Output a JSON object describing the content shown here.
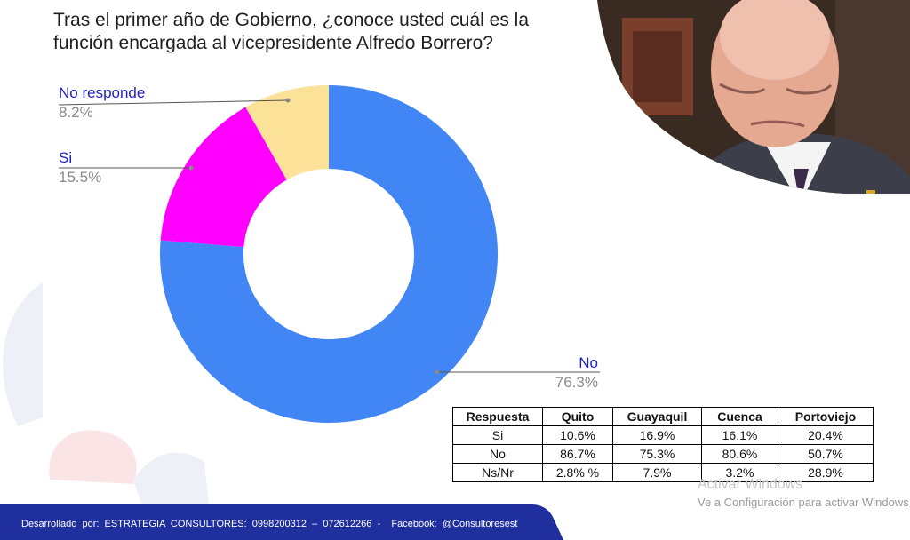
{
  "question": {
    "line1": "Tras el primer año de Gobierno, ¿conoce usted cuál es la",
    "line2": "función encargada al vicepresidente Alfredo Borrero?"
  },
  "chart_data": {
    "type": "pie",
    "variant": "donut",
    "title": "Tras el primer año de Gobierno, ¿conoce usted cuál es la función encargada al vicepresidente Alfredo Borrero?",
    "slices": [
      {
        "label": "No",
        "value": 76.3,
        "value_label": "76.3%",
        "color": "#4285f4"
      },
      {
        "label": "Si",
        "value": 15.5,
        "value_label": "15.5%",
        "color": "#ff00ff"
      },
      {
        "label": "No responde",
        "value": 8.2,
        "value_label": "8.2%",
        "color": "#fce199"
      }
    ]
  },
  "table": {
    "headers": [
      "Respuesta",
      "Quito",
      "Guayaquil",
      "Cuenca",
      "Portoviejo"
    ],
    "rows": [
      [
        "Si",
        "10.6%",
        "16.9%",
        "16.1%",
        "20.4%"
      ],
      [
        "No",
        "86.7%",
        "75.3%",
        "80.6%",
        "50.7%"
      ],
      [
        "Ns/Nr",
        "2.8% %",
        "7.9%",
        "3.2%",
        "28.9%"
      ]
    ]
  },
  "watermark": {
    "line1": "Activar Windows",
    "line2": "Ve a Configuración para activar Windows"
  },
  "footer": {
    "text": "Desarrollado  por:  ESTRATEGIA  CONSULTORES:  0998200312  –  072612266  -    Facebook:  @Consultoresest"
  },
  "colors": {
    "footer_band": "#1f2f9e",
    "label_name": "#2121c8",
    "label_value": "#8a8a8a"
  }
}
